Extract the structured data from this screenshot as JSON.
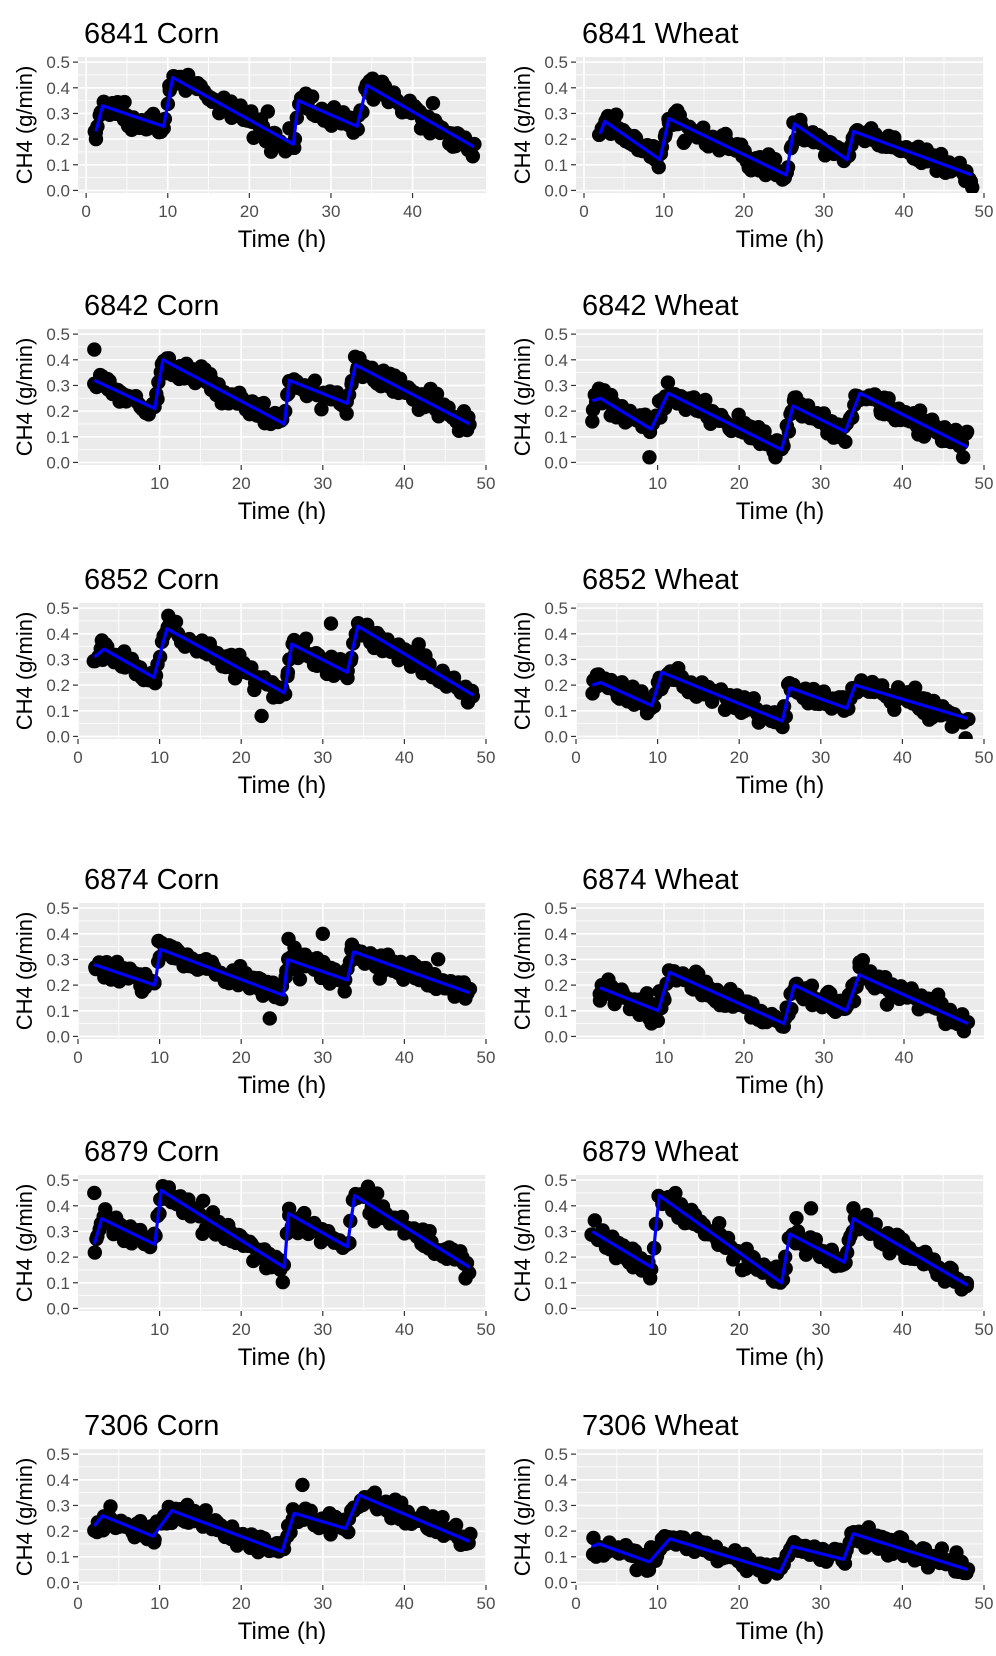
{
  "figure": {
    "background": "#ffffff",
    "panel_bg": "#ebebeb",
    "grid_color": "#ffffff",
    "point_color": "#000000",
    "line_color": "#0000ff"
  },
  "chart_data": [
    {
      "type": "scatter",
      "title": "6841 Corn",
      "xlabel": "Time (h)",
      "ylabel": "CH4 (g/min)",
      "xlim": [
        -1,
        49
      ],
      "ylim": [
        -0.01,
        0.52
      ],
      "xticks": [
        0,
        10,
        20,
        30,
        40
      ],
      "yticks": [
        0.0,
        0.1,
        0.2,
        0.3,
        0.4,
        0.5
      ],
      "x_range": [
        1,
        47.5
      ],
      "feeds": [
        1.8,
        9.8,
        25.5,
        33.3
      ],
      "observed": {
        "name": "",
        "description": "black points"
      },
      "fitted_curve": {
        "color": "#0000ff",
        "knots": [
          [
            1.2,
            0.23
          ],
          [
            2.0,
            0.33
          ],
          [
            9.5,
            0.25
          ],
          [
            10.6,
            0.44
          ],
          [
            25.4,
            0.18
          ],
          [
            26.0,
            0.35
          ],
          [
            33.2,
            0.25
          ],
          [
            34.4,
            0.41
          ],
          [
            47.5,
            0.17
          ]
        ]
      },
      "outliers": [
        [
          1.2,
          0.2
        ],
        [
          12.5,
          0.45
        ],
        [
          42.5,
          0.34
        ]
      ]
    },
    {
      "type": "scatter",
      "title": "6841 Wheat",
      "xlabel": "Time (h)",
      "ylabel": "CH4 (g/min)",
      "xlim": [
        -1,
        50
      ],
      "ylim": [
        -0.01,
        0.52
      ],
      "xticks": [
        0,
        10,
        20,
        30,
        40,
        50
      ],
      "yticks": [
        0.0,
        0.1,
        0.2,
        0.3,
        0.4,
        0.5
      ],
      "x_range": [
        2,
        48.5
      ],
      "feeds": [
        1.8,
        9.8,
        25.5,
        33.3
      ],
      "observed": {
        "name": "",
        "description": "black points"
      },
      "fitted_curve": {
        "color": "#0000ff",
        "knots": [
          [
            2.0,
            0.22
          ],
          [
            2.6,
            0.27
          ],
          [
            9.5,
            0.12
          ],
          [
            10.6,
            0.28
          ],
          [
            25.3,
            0.06
          ],
          [
            26.3,
            0.26
          ],
          [
            32.9,
            0.12
          ],
          [
            33.7,
            0.23
          ],
          [
            48.5,
            0.06
          ]
        ]
      },
      "outliers": []
    },
    {
      "type": "scatter",
      "title": "6842 Corn",
      "xlabel": "Time (h)",
      "ylabel": "CH4 (g/min)",
      "xlim": [
        0,
        50
      ],
      "ylim": [
        -0.01,
        0.52
      ],
      "xticks": [
        10,
        20,
        30,
        40,
        50
      ],
      "yticks": [
        0.0,
        0.1,
        0.2,
        0.3,
        0.4,
        0.5
      ],
      "x_range": [
        2,
        48
      ],
      "feeds": [
        1.8,
        9.8,
        25.5,
        33.3
      ],
      "observed": {
        "name": "",
        "description": "black points"
      },
      "fitted_curve": {
        "color": "#0000ff",
        "knots": [
          [
            2.0,
            0.32
          ],
          [
            9.4,
            0.21
          ],
          [
            10.4,
            0.4
          ],
          [
            25.3,
            0.15
          ],
          [
            25.9,
            0.32
          ],
          [
            33.0,
            0.23
          ],
          [
            34.0,
            0.38
          ],
          [
            48.0,
            0.15
          ]
        ]
      },
      "outliers": [
        [
          2.0,
          0.44
        ]
      ]
    },
    {
      "type": "scatter",
      "title": "6842 Wheat",
      "xlabel": "Time (h)",
      "ylabel": "CH4 (g/min)",
      "xlim": [
        0,
        50
      ],
      "ylim": [
        -0.01,
        0.52
      ],
      "xticks": [
        10,
        20,
        30,
        40,
        50
      ],
      "yticks": [
        0.0,
        0.1,
        0.2,
        0.3,
        0.4,
        0.5
      ],
      "x_range": [
        2,
        48
      ],
      "feeds": [
        1.8,
        9.8,
        25.5,
        33.3
      ],
      "observed": {
        "name": "",
        "description": "black points"
      },
      "fitted_curve": {
        "color": "#0000ff",
        "knots": [
          [
            2.0,
            0.24
          ],
          [
            3.0,
            0.25
          ],
          [
            9.2,
            0.13
          ],
          [
            11.3,
            0.27
          ],
          [
            25.2,
            0.05
          ],
          [
            26.6,
            0.22
          ],
          [
            33.0,
            0.12
          ],
          [
            34.8,
            0.27
          ],
          [
            48.0,
            0.06
          ]
        ]
      },
      "outliers": [
        [
          2.0,
          0.16
        ],
        [
          9.0,
          0.02
        ]
      ]
    },
    {
      "type": "scatter",
      "title": "6852 Corn",
      "xlabel": "Time (h)",
      "ylabel": "CH4 (g/min)",
      "xlim": [
        0,
        50
      ],
      "ylim": [
        -0.01,
        0.52
      ],
      "xticks": [
        0,
        10,
        20,
        30,
        40,
        50
      ],
      "yticks": [
        0.0,
        0.1,
        0.2,
        0.3,
        0.4,
        0.5
      ],
      "x_range": [
        2,
        48.5
      ],
      "feeds": [
        1.8,
        9.8,
        25.5,
        33.3
      ],
      "observed": {
        "name": "",
        "description": "black points"
      },
      "fitted_curve": {
        "color": "#0000ff",
        "knots": [
          [
            2.0,
            0.31
          ],
          [
            3.2,
            0.34
          ],
          [
            9.3,
            0.23
          ],
          [
            10.9,
            0.42
          ],
          [
            25.3,
            0.17
          ],
          [
            26.2,
            0.36
          ],
          [
            33.0,
            0.25
          ],
          [
            34.3,
            0.43
          ],
          [
            48.5,
            0.16
          ]
        ]
      },
      "outliers": [
        [
          22.5,
          0.08
        ],
        [
          31.0,
          0.44
        ]
      ]
    },
    {
      "type": "scatter",
      "title": "6852 Wheat",
      "xlabel": "Time (h)",
      "ylabel": "CH4 (g/min)",
      "xlim": [
        0,
        50
      ],
      "ylim": [
        -0.01,
        0.52
      ],
      "xticks": [
        0,
        10,
        20,
        30,
        40,
        50
      ],
      "yticks": [
        0.0,
        0.1,
        0.2,
        0.3,
        0.4,
        0.5
      ],
      "x_range": [
        2,
        48
      ],
      "feeds": [
        1.8,
        9.8,
        25.5,
        33.3
      ],
      "observed": {
        "name": "",
        "description": "black points"
      },
      "fitted_curve": {
        "color": "#0000ff",
        "knots": [
          [
            2.0,
            0.2
          ],
          [
            3.0,
            0.21
          ],
          [
            9.3,
            0.12
          ],
          [
            10.5,
            0.25
          ],
          [
            25.3,
            0.06
          ],
          [
            26.2,
            0.19
          ],
          [
            33.2,
            0.11
          ],
          [
            34.2,
            0.2
          ],
          [
            48.0,
            0.07
          ]
        ]
      },
      "outliers": []
    },
    {
      "type": "scatter",
      "title": "6874 Corn",
      "xlabel": "Time (h)",
      "ylabel": "CH4 (g/min)",
      "xlim": [
        0,
        50
      ],
      "ylim": [
        -0.01,
        0.52
      ],
      "xticks": [
        0,
        10,
        20,
        30,
        40,
        50
      ],
      "yticks": [
        0.0,
        0.1,
        0.2,
        0.3,
        0.4,
        0.5
      ],
      "x_range": [
        2,
        48
      ],
      "feeds": [
        1.8,
        9.8,
        25.5,
        33.3
      ],
      "observed": {
        "name": "",
        "description": "black points"
      },
      "fitted_curve": {
        "color": "#0000ff",
        "knots": [
          [
            2.0,
            0.28
          ],
          [
            9.4,
            0.2
          ],
          [
            10.1,
            0.34
          ],
          [
            25.2,
            0.16
          ],
          [
            25.7,
            0.3
          ],
          [
            33.0,
            0.22
          ],
          [
            33.8,
            0.33
          ],
          [
            48.0,
            0.17
          ]
        ]
      },
      "outliers": [
        [
          23.5,
          0.07
        ],
        [
          25.8,
          0.38
        ],
        [
          30.0,
          0.4
        ]
      ]
    },
    {
      "type": "scatter",
      "title": "6874 Wheat",
      "xlabel": "Time (h)",
      "ylabel": "CH4 (g/min)",
      "xlim": [
        -1,
        50
      ],
      "ylim": [
        -0.01,
        0.52
      ],
      "xticks": [
        10,
        20,
        30,
        40
      ],
      "yticks": [
        0.0,
        0.1,
        0.2,
        0.3,
        0.4,
        0.5
      ],
      "x_range": [
        2,
        48
      ],
      "feeds": [
        1.8,
        9.8,
        25.5,
        33.3
      ],
      "observed": {
        "name": "",
        "description": "black points"
      },
      "fitted_curve": {
        "color": "#0000ff",
        "knots": [
          [
            2.0,
            0.19
          ],
          [
            9.3,
            0.1
          ],
          [
            10.7,
            0.25
          ],
          [
            25.0,
            0.05
          ],
          [
            26.3,
            0.2
          ],
          [
            32.8,
            0.1
          ],
          [
            34.4,
            0.24
          ],
          [
            48.0,
            0.05
          ]
        ]
      },
      "outliers": [
        [
          2.0,
          0.14
        ]
      ]
    },
    {
      "type": "scatter",
      "title": "6879 Corn",
      "xlabel": "Time (h)",
      "ylabel": "CH4 (g/min)",
      "xlim": [
        0,
        50
      ],
      "ylim": [
        -0.01,
        0.52
      ],
      "xticks": [
        10,
        20,
        30,
        40,
        50
      ],
      "yticks": [
        0.0,
        0.1,
        0.2,
        0.3,
        0.4,
        0.5
      ],
      "x_range": [
        2,
        48
      ],
      "feeds": [
        1.8,
        9.8,
        25.5,
        33.3
      ],
      "observed": {
        "name": "",
        "description": "black points"
      },
      "fitted_curve": {
        "color": "#0000ff",
        "knots": [
          [
            2.0,
            0.25
          ],
          [
            2.9,
            0.35
          ],
          [
            9.4,
            0.25
          ],
          [
            10.2,
            0.46
          ],
          [
            25.3,
            0.16
          ],
          [
            25.8,
            0.37
          ],
          [
            33.0,
            0.24
          ],
          [
            33.9,
            0.44
          ],
          [
            48.0,
            0.16
          ]
        ]
      },
      "outliers": [
        [
          2.0,
          0.45
        ]
      ]
    },
    {
      "type": "scatter",
      "title": "6879 Wheat",
      "xlabel": "Time (h)",
      "ylabel": "CH4 (g/min)",
      "xlim": [
        0,
        50
      ],
      "ylim": [
        -0.01,
        0.52
      ],
      "xticks": [
        10,
        20,
        30,
        40,
        50
      ],
      "yticks": [
        0.0,
        0.1,
        0.2,
        0.3,
        0.4,
        0.5
      ],
      "x_range": [
        2,
        48
      ],
      "feeds": [
        1.8,
        9.8,
        25.5,
        33.3
      ],
      "observed": {
        "name": "",
        "description": "black points"
      },
      "fitted_curve": {
        "color": "#0000ff",
        "knots": [
          [
            2.0,
            0.3
          ],
          [
            9.3,
            0.16
          ],
          [
            10.2,
            0.44
          ],
          [
            25.2,
            0.1
          ],
          [
            26.2,
            0.29
          ],
          [
            32.9,
            0.18
          ],
          [
            34.0,
            0.35
          ],
          [
            48.0,
            0.09
          ]
        ]
      },
      "outliers": [
        [
          28.8,
          0.39
        ],
        [
          34.0,
          0.39
        ]
      ]
    },
    {
      "type": "scatter",
      "title": "7306 Corn",
      "xlabel": "Time (h)",
      "ylabel": "CH4 (g/min)",
      "xlim": [
        0,
        50
      ],
      "ylim": [
        -0.01,
        0.52
      ],
      "xticks": [
        0,
        10,
        20,
        30,
        40,
        50
      ],
      "yticks": [
        0.0,
        0.1,
        0.2,
        0.3,
        0.4,
        0.5
      ],
      "x_range": [
        2,
        48
      ],
      "feeds": [
        1.8,
        9.8,
        25.5,
        33.3
      ],
      "observed": {
        "name": "",
        "description": "black points"
      },
      "fitted_curve": {
        "color": "#0000ff",
        "knots": [
          [
            2.0,
            0.22
          ],
          [
            3.0,
            0.26
          ],
          [
            9.2,
            0.18
          ],
          [
            11.5,
            0.28
          ],
          [
            25.0,
            0.12
          ],
          [
            26.5,
            0.27
          ],
          [
            32.8,
            0.21
          ],
          [
            34.5,
            0.34
          ],
          [
            48.0,
            0.16
          ]
        ]
      },
      "outliers": [
        [
          27.5,
          0.38
        ]
      ]
    },
    {
      "type": "scatter",
      "title": "7306 Wheat",
      "xlabel": "Time (h)",
      "ylabel": "CH4 (g/min)",
      "xlim": [
        0,
        50
      ],
      "ylim": [
        -0.01,
        0.52
      ],
      "xticks": [
        0,
        10,
        20,
        30,
        40,
        50
      ],
      "yticks": [
        0.0,
        0.1,
        0.2,
        0.3,
        0.4,
        0.5
      ],
      "x_range": [
        2,
        48
      ],
      "feeds": [
        1.8,
        9.8,
        25.5,
        33.3
      ],
      "observed": {
        "name": "",
        "description": "black points"
      },
      "fitted_curve": {
        "color": "#0000ff",
        "knots": [
          [
            2.0,
            0.14
          ],
          [
            2.8,
            0.15
          ],
          [
            9.0,
            0.08
          ],
          [
            11.5,
            0.17
          ],
          [
            25.0,
            0.04
          ],
          [
            26.5,
            0.14
          ],
          [
            32.8,
            0.09
          ],
          [
            34.0,
            0.19
          ],
          [
            48.0,
            0.05
          ]
        ]
      },
      "outliers": []
    }
  ]
}
